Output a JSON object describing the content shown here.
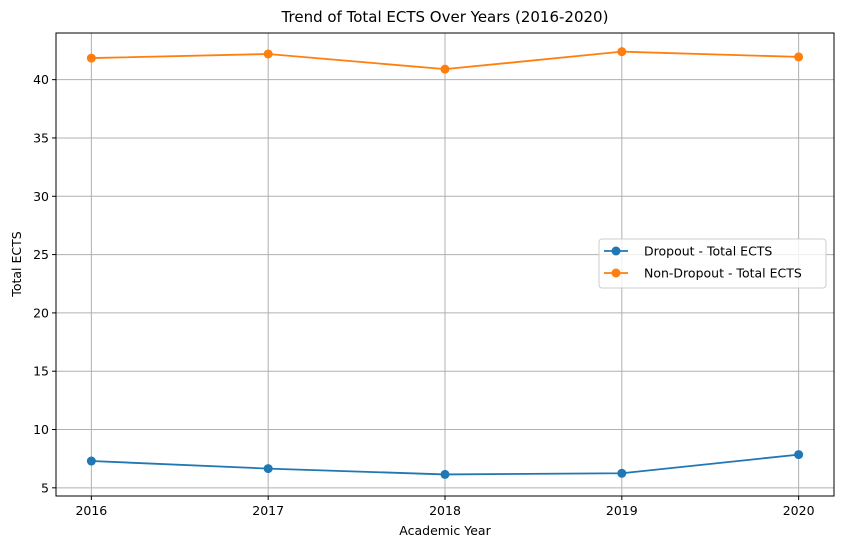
{
  "chart_data": {
    "type": "line",
    "title": "Trend of Total ECTS Over Years (2016-2020)",
    "xlabel": "Academic Year",
    "ylabel": "Total ECTS",
    "x": [
      2016,
      2017,
      2018,
      2019,
      2020
    ],
    "x_tick_labels": [
      "2016",
      "2017",
      "2018",
      "2019",
      "2020"
    ],
    "y_ticks": [
      5,
      10,
      15,
      20,
      25,
      30,
      35,
      40
    ],
    "y_tick_labels": [
      "5",
      "10",
      "15",
      "20",
      "25",
      "30",
      "35",
      "40"
    ],
    "xlim": [
      2015.8,
      2020.2
    ],
    "ylim": [
      4.3,
      44.0
    ],
    "grid": true,
    "legend_position": "center-right",
    "series": [
      {
        "name": "Dropout - Total ECTS",
        "color": "#1f77b4",
        "marker": "circle",
        "values": [
          7.3,
          6.65,
          6.15,
          6.25,
          7.85
        ]
      },
      {
        "name": "Non-Dropout - Total ECTS",
        "color": "#ff7f0e",
        "marker": "circle",
        "values": [
          41.85,
          42.2,
          40.9,
          42.4,
          41.95
        ]
      }
    ]
  }
}
